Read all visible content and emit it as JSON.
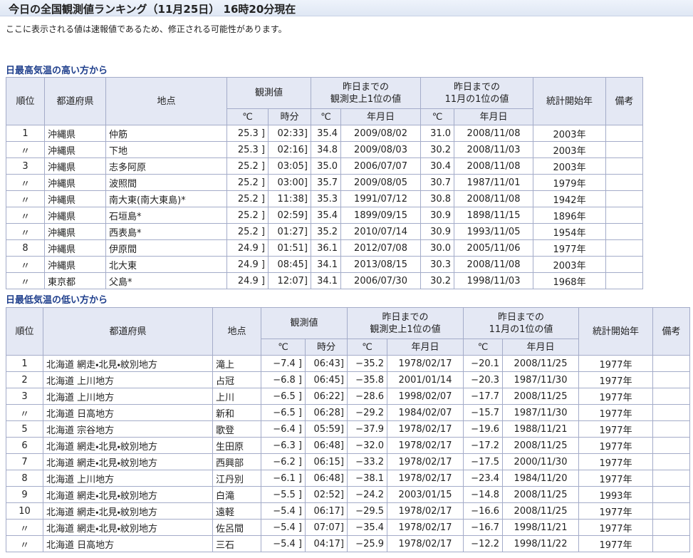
{
  "header": {
    "title": "今日の全国観測値ランキング（11月25日） 16時20分現在",
    "note": "ここに表示される値は速報値であるため、修正される可能性があります。"
  },
  "tables": [
    {
      "title": "日最高気温の高い方から",
      "headers": {
        "rank": "順位",
        "prefecture": "都道府県",
        "station": "地点",
        "observed": "観測値",
        "record": [
          "昨日までの",
          "観測史上1位の値"
        ],
        "nov_record": [
          "昨日までの",
          "11月の1位の値"
        ],
        "start": "統計開始年",
        "remarks": "備考",
        "sub": [
          "℃",
          "時分",
          "℃",
          "年月日",
          "℃",
          "年月日"
        ]
      },
      "rows": [
        [
          "1",
          "沖縄県",
          "仲筋",
          "25.3 ]",
          "02:33]",
          "35.4",
          "2009/08/02",
          "31.0",
          "2008/11/08",
          "2003年"
        ],
        [
          "〃",
          "沖縄県",
          "下地",
          "25.3 ]",
          "02:16]",
          "34.8",
          "2009/08/03",
          "30.2",
          "2008/11/03",
          "2003年"
        ],
        [
          "3",
          "沖縄県",
          "志多阿原",
          "25.2 ]",
          "03:05]",
          "35.0",
          "2006/07/07",
          "30.4",
          "2008/11/08",
          "2003年"
        ],
        [
          "〃",
          "沖縄県",
          "波照間",
          "25.2 ]",
          "03:00]",
          "35.7",
          "2009/08/05",
          "30.7",
          "1987/11/01",
          "1979年"
        ],
        [
          "〃",
          "沖縄県",
          "南大東(南大東島)*",
          "25.2 ]",
          "11:38]",
          "35.3",
          "1991/07/12",
          "30.8",
          "2008/11/08",
          "1942年"
        ],
        [
          "〃",
          "沖縄県",
          "石垣島*",
          "25.2 ]",
          "02:59]",
          "35.4",
          "1899/09/15",
          "30.9",
          "1898/11/15",
          "1896年"
        ],
        [
          "〃",
          "沖縄県",
          "西表島*",
          "25.2 ]",
          "01:27]",
          "35.2",
          "2010/07/14",
          "30.9",
          "1993/11/05",
          "1954年"
        ],
        [
          "8",
          "沖縄県",
          "伊原間",
          "24.9 ]",
          "01:51]",
          "36.1",
          "2012/07/08",
          "30.0",
          "2005/11/06",
          "1977年"
        ],
        [
          "〃",
          "沖縄県",
          "北大東",
          "24.9 ]",
          "08:45]",
          "34.1",
          "2013/08/15",
          "30.3",
          "2008/11/08",
          "2003年"
        ],
        [
          "〃",
          "東京都",
          "父島*",
          "24.9 ]",
          "12:07]",
          "34.1",
          "2006/07/30",
          "30.2",
          "1998/11/03",
          "1968年"
        ]
      ]
    },
    {
      "title": "日最低気温の低い方から",
      "headers": {
        "rank": "順位",
        "prefecture": "都道府県",
        "station": "地点",
        "observed": "観測値",
        "record": [
          "昨日までの",
          "観測史上1位の値"
        ],
        "nov_record": [
          "昨日までの",
          "11月の1位の値"
        ],
        "start": "統計開始年",
        "remarks": "備考",
        "sub": [
          "℃",
          "時分",
          "℃",
          "年月日",
          "℃",
          "年月日"
        ]
      },
      "rows": [
        [
          "1",
          "北海道 網走・北見・紋別地方",
          "滝上",
          "−7.4 ]",
          "06:43]",
          "−35.2",
          "1978/02/17",
          "−20.1",
          "2008/11/25",
          "1977年"
        ],
        [
          "2",
          "北海道 上川地方",
          "占冠",
          "−6.8 ]",
          "06:45]",
          "−35.8",
          "2001/01/14",
          "−20.3",
          "1987/11/30",
          "1977年"
        ],
        [
          "3",
          "北海道 上川地方",
          "上川",
          "−6.5 ]",
          "06:22]",
          "−28.6",
          "1998/02/07",
          "−17.7",
          "2008/11/25",
          "1977年"
        ],
        [
          "〃",
          "北海道 日高地方",
          "新和",
          "−6.5 ]",
          "06:28]",
          "−29.2",
          "1984/02/07",
          "−15.7",
          "1987/11/30",
          "1977年"
        ],
        [
          "5",
          "北海道 宗谷地方",
          "歌登",
          "−6.4 ]",
          "05:59]",
          "−37.9",
          "1978/02/17",
          "−19.6",
          "1988/11/21",
          "1977年"
        ],
        [
          "6",
          "北海道 網走・北見・紋別地方",
          "生田原",
          "−6.3 ]",
          "06:48]",
          "−32.0",
          "1978/02/17",
          "−17.2",
          "2008/11/25",
          "1977年"
        ],
        [
          "7",
          "北海道 網走・北見・紋別地方",
          "西興部",
          "−6.2 ]",
          "06:15]",
          "−33.2",
          "1978/02/17",
          "−17.5",
          "2000/11/30",
          "1977年"
        ],
        [
          "8",
          "北海道 上川地方",
          "江丹別",
          "−6.1 ]",
          "06:48]",
          "−38.1",
          "1978/02/17",
          "−23.4",
          "1984/11/20",
          "1977年"
        ],
        [
          "9",
          "北海道 網走・北見・紋別地方",
          "白滝",
          "−5.5 ]",
          "02:52]",
          "−24.2",
          "2003/01/15",
          "−14.8",
          "2008/11/25",
          "1993年"
        ],
        [
          "10",
          "北海道 網走・北見・紋別地方",
          "遠軽",
          "−5.4 ]",
          "06:17]",
          "−29.5",
          "1978/02/17",
          "−16.6",
          "2008/11/25",
          "1977年"
        ],
        [
          "〃",
          "北海道 網走・北見・紋別地方",
          "佐呂間",
          "−5.4 ]",
          "07:07]",
          "−35.4",
          "1978/02/17",
          "−16.7",
          "1998/11/21",
          "1977年"
        ],
        [
          "〃",
          "北海道 日高地方",
          "三石",
          "−5.4 ]",
          "04:17]",
          "−25.9",
          "1978/02/17",
          "−12.2",
          "1998/11/22",
          "1977年"
        ]
      ]
    }
  ]
}
